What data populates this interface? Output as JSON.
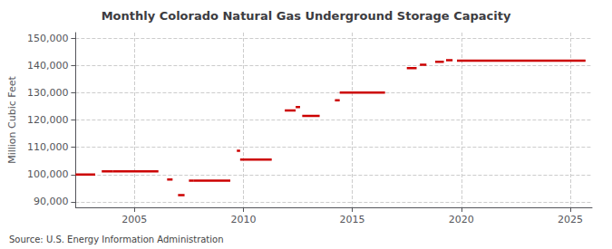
{
  "chart_data": {
    "type": "segments",
    "title": "Monthly Colorado Natural Gas Underground Storage Capacity",
    "ylabel": "Million Cubic Feet",
    "source": "Source: U.S. Energy Information Administration",
    "color": "#cc0000",
    "grid": true,
    "xlim": [
      2002.3,
      2026.0
    ],
    "xticks": [
      2005,
      2010,
      2015,
      2020,
      2025
    ],
    "ylim": [
      88000,
      152000
    ],
    "yticks": [
      {
        "value": 90000,
        "label": "90,000"
      },
      {
        "value": 100000,
        "label": "100,000"
      },
      {
        "value": 110000,
        "label": "110,000"
      },
      {
        "value": 120000,
        "label": "120,000"
      },
      {
        "value": 130000,
        "label": "130,000"
      },
      {
        "value": 140000,
        "label": "140,000"
      },
      {
        "value": 150000,
        "label": "150,000"
      }
    ],
    "segments": [
      {
        "x_start": 2002.3,
        "x_end": 2003.2,
        "y": 100000
      },
      {
        "x_start": 2003.5,
        "x_end": 2004.0,
        "y": 101200
      },
      {
        "x_start": 2004.0,
        "x_end": 2006.1,
        "y": 101200
      },
      {
        "x_start": 2006.5,
        "x_end": 2006.75,
        "y": 98200
      },
      {
        "x_start": 2007.0,
        "x_end": 2007.3,
        "y": 92500
      },
      {
        "x_start": 2007.5,
        "x_end": 2007.7,
        "y": 97800
      },
      {
        "x_start": 2007.7,
        "x_end": 2009.4,
        "y": 97800
      },
      {
        "x_start": 2009.7,
        "x_end": 2009.85,
        "y": 108700
      },
      {
        "x_start": 2009.85,
        "x_end": 2011.3,
        "y": 105500
      },
      {
        "x_start": 2011.9,
        "x_end": 2012.4,
        "y": 123500
      },
      {
        "x_start": 2012.4,
        "x_end": 2012.6,
        "y": 124700
      },
      {
        "x_start": 2012.7,
        "x_end": 2013.5,
        "y": 121500
      },
      {
        "x_start": 2014.2,
        "x_end": 2014.42,
        "y": 127200
      },
      {
        "x_start": 2014.42,
        "x_end": 2016.5,
        "y": 130000
      },
      {
        "x_start": 2017.5,
        "x_end": 2017.95,
        "y": 139000
      },
      {
        "x_start": 2018.1,
        "x_end": 2018.4,
        "y": 140200
      },
      {
        "x_start": 2018.8,
        "x_end": 2019.2,
        "y": 141300
      },
      {
        "x_start": 2019.3,
        "x_end": 2019.6,
        "y": 141900
      },
      {
        "x_start": 2019.8,
        "x_end": 2025.7,
        "y": 141700
      }
    ]
  }
}
